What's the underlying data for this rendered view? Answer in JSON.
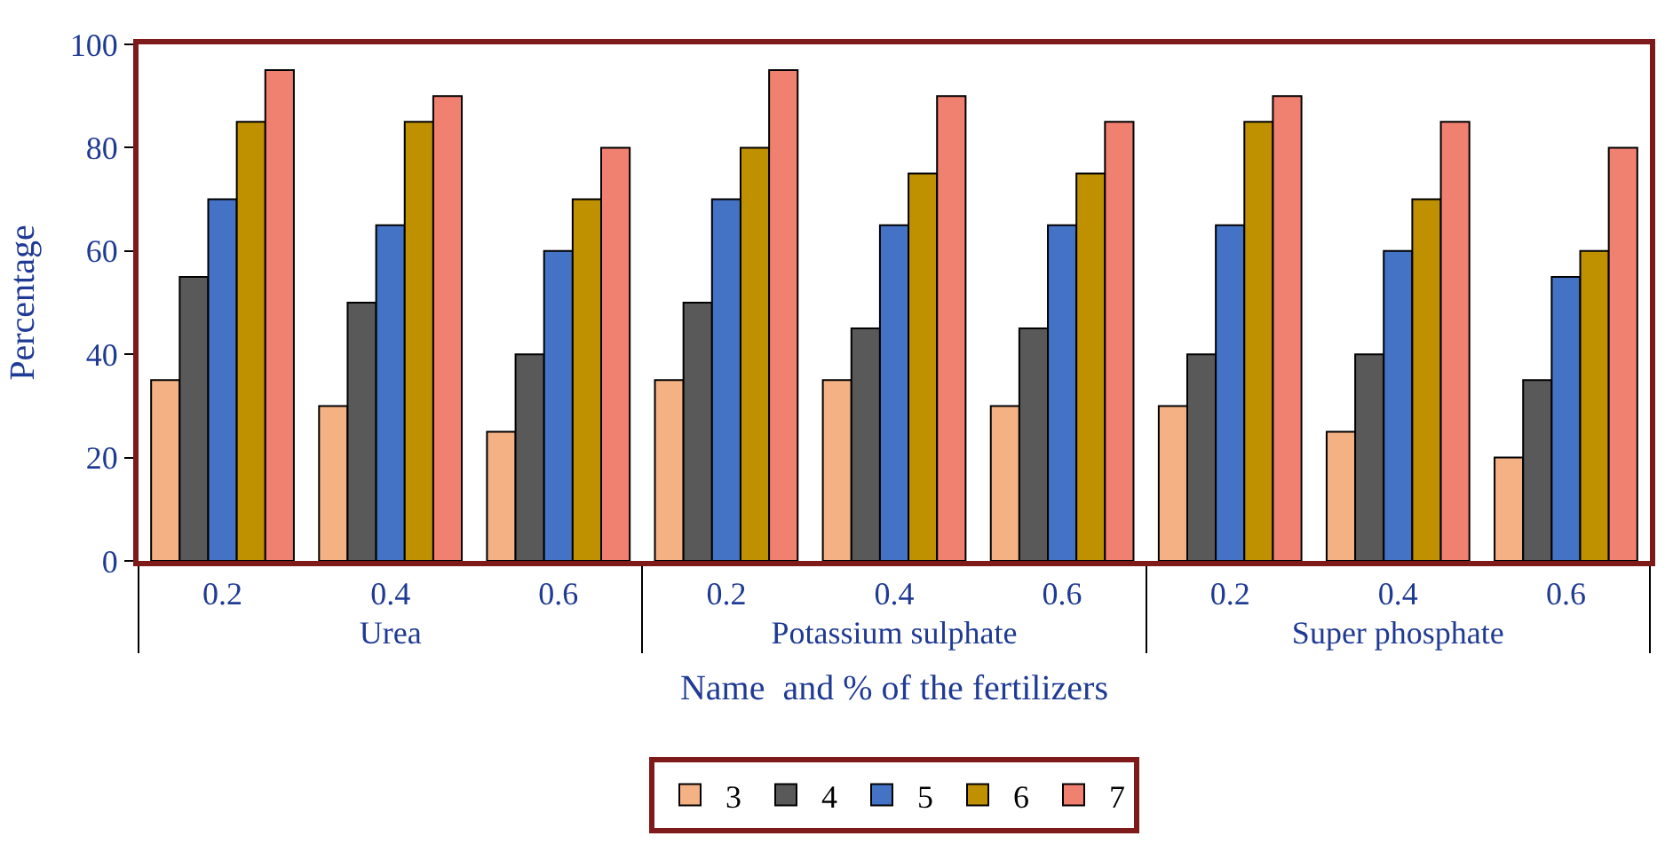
{
  "chart_data": {
    "type": "bar",
    "xlabel": "Name  and % of the fertilizers",
    "ylabel": "Percentage",
    "categories": [
      "0.2",
      "0.4",
      "0.6",
      "0.2",
      "0.4",
      "0.6",
      "0.2",
      "0.4",
      "0.6"
    ],
    "annotations": [
      "Urea",
      "Potassium sulphate",
      "Super phosphate"
    ],
    "series": [
      {
        "name": "3",
        "color": "#f4b183",
        "values": [
          35,
          30,
          25,
          35,
          35,
          30,
          30,
          25,
          20
        ]
      },
      {
        "name": "4",
        "color": "#595959",
        "values": [
          55,
          50,
          40,
          50,
          45,
          45,
          40,
          40,
          35
        ]
      },
      {
        "name": "5",
        "color": "#4472c4",
        "values": [
          70,
          65,
          60,
          70,
          65,
          65,
          65,
          60,
          55
        ]
      },
      {
        "name": "6",
        "color": "#bf9000",
        "values": [
          85,
          85,
          70,
          80,
          75,
          75,
          85,
          70,
          60
        ]
      },
      {
        "name": "7",
        "color": "#f08070",
        "values": [
          95,
          90,
          80,
          95,
          90,
          85,
          90,
          85,
          80
        ]
      }
    ],
    "ylim": [
      0,
      100
    ],
    "yticks": [
      0,
      20,
      40,
      60,
      80,
      100
    ],
    "legend": "bottom"
  }
}
